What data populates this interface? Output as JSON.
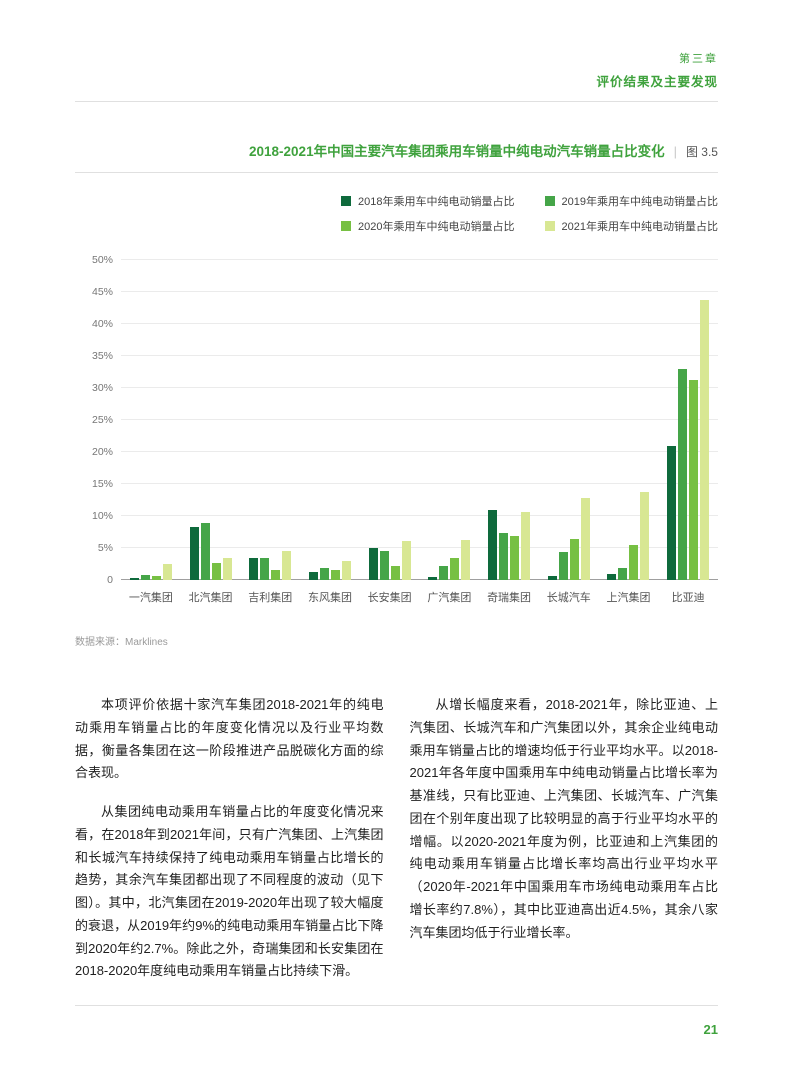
{
  "theme": {
    "accent": "#3fa23d"
  },
  "page": {
    "chapter": "第三章",
    "chapter_title": "评价结果及主要发现",
    "page_number": "21"
  },
  "figure": {
    "title": "2018-2021年中国主要汽车集团乘用车销量中纯电动汽车销量占比变化",
    "separator": "|",
    "label": "图 3.5",
    "source_note": "数据来源：Marklines"
  },
  "chart_data": {
    "type": "bar",
    "title": "2018-2021年中国主要汽车集团乘用车销量中纯电动汽车销量占比变化",
    "categories": [
      "一汽集团",
      "北汽集团",
      "吉利集团",
      "东风集团",
      "长安集团",
      "广汽集团",
      "奇瑞集团",
      "长城汽车",
      "上汽集团",
      "比亚迪"
    ],
    "series": [
      {
        "name": "2018年乘用车中纯电动销量占比",
        "color": "#0e6a3c",
        "values": [
          0.3,
          8.3,
          3.5,
          1.2,
          5.0,
          0.4,
          11.0,
          0.6,
          1.0,
          21.0
        ]
      },
      {
        "name": "2019年乘用车中纯电动销量占比",
        "color": "#45a548",
        "values": [
          0.8,
          8.9,
          3.4,
          1.8,
          4.5,
          2.2,
          7.3,
          4.3,
          1.9,
          33.0
        ]
      },
      {
        "name": "2020年乘用车中纯电动销量占比",
        "color": "#77c043",
        "values": [
          0.7,
          2.7,
          1.5,
          1.5,
          2.2,
          3.4,
          6.8,
          6.4,
          5.4,
          31.3
        ]
      },
      {
        "name": "2021年乘用车中纯电动销量占比",
        "color": "#d8e793",
        "values": [
          2.5,
          3.5,
          4.5,
          2.9,
          6.1,
          6.3,
          10.6,
          12.8,
          13.8,
          43.7
        ]
      }
    ],
    "xlabel": "",
    "ylabel": "",
    "ylim": [
      0,
      50
    ],
    "ytick_labels": [
      "0",
      "5%",
      "10%",
      "15%",
      "20%",
      "25%",
      "30%",
      "35%",
      "40%",
      "45%",
      "50%"
    ],
    "grid": true,
    "legend_position": "top-right"
  },
  "body": {
    "left_paragraphs": [
      "本项评价依据十家汽车集团2018-2021年的纯电动乘用车销量占比的年度变化情况以及行业平均数据，衡量各集团在这一阶段推进产品脱碳化方面的综合表现。",
      "从集团纯电动乘用车销量占比的年度变化情况来看，在2018年到2021年间，只有广汽集团、上汽集团和长城汽车持续保持了纯电动乘用车销量占比增长的趋势，其余汽车集团都出现了不同程度的波动（见下图）。其中，北汽集团在2019-2020年出现了较大幅度的衰退，从2019年约9%的纯电动乘用车销量占比下降到2020年约2.7%。除此之外，奇瑞集团和长安集团在2018-2020年度纯电动乘用车销量占比持续下滑。"
    ],
    "right_paragraphs": [
      "从增长幅度来看，2018-2021年，除比亚迪、上汽集团、长城汽车和广汽集团以外，其余企业纯电动乘用车销量占比的增速均低于行业平均水平。以2018-2021年各年度中国乘用车中纯电动销量占比增长率为基准线，只有比亚迪、上汽集团、长城汽车、广汽集团在个别年度出现了比较明显的高于行业平均水平的增幅。以2020-2021年度为例，比亚迪和上汽集团的纯电动乘用车销量占比增长率均高出行业平均水平（2020年-2021年中国乘用车市场纯电动乘用车占比增长率约7.8%），其中比亚迪高出近4.5%，其余八家汽车集团均低于行业增长率。"
    ]
  }
}
